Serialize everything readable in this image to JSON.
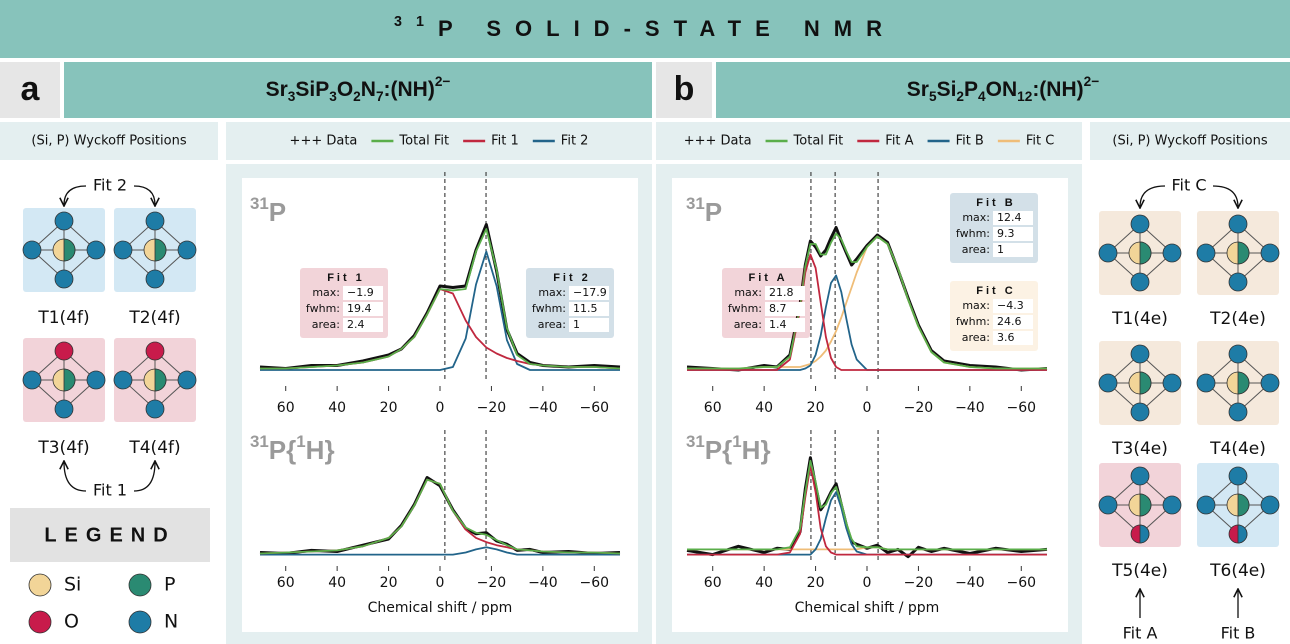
{
  "title": [
    {
      "text": "31",
      "style": "sup"
    },
    {
      "text": "P SOLID-STATE NMR"
    }
  ],
  "legend": {
    "title": "LEGEND",
    "items": [
      {
        "name": "Si",
        "color": "#f2d598"
      },
      {
        "name": "P",
        "color": "#2a8a72"
      },
      {
        "name": "O",
        "color": "#c81b4b"
      },
      {
        "name": "N",
        "color": "#1e7ca6"
      }
    ]
  },
  "wyckoff": [
    {
      "header": "(Si, P) Wyckoff Positions",
      "sites": [
        "T1(4f)",
        "T2(4f)",
        "T3(4f)",
        "T4(4f)"
      ],
      "groups": [
        "Fit 2",
        "Fit 1"
      ]
    },
    {
      "header": "(Si, P) Wyckoff Positions",
      "sites": [
        "T1(4e)",
        "T2(4e)",
        "T3(4e)",
        "T4(4e)",
        "T5(4e)",
        "T6(4e)"
      ],
      "groups": [
        "Fit C",
        "Fit A",
        "Fit B"
      ]
    }
  ],
  "chart_data": [
    {
      "type": "line",
      "panel": "a",
      "formula": [
        {
          "text": "Sr"
        },
        {
          "text": "3",
          "style": "sub"
        },
        {
          "text": "SiP"
        },
        {
          "text": "3",
          "style": "sub"
        },
        {
          "text": "O"
        },
        {
          "text": "2",
          "style": "sub"
        },
        {
          "text": "N"
        },
        {
          "text": "7",
          "style": "sub"
        },
        {
          "text": ":(NH)"
        },
        {
          "text": "2−",
          "style": "sup"
        }
      ],
      "series": [
        {
          "name": "+++ Data",
          "color": "#111111"
        },
        {
          "name": "Total Fit",
          "color": "#5aae4a"
        },
        {
          "name": "Fit 1",
          "color": "#c0283f"
        },
        {
          "name": "Fit 2",
          "color": "#22648a"
        }
      ],
      "x": [
        70,
        60,
        50,
        40,
        30,
        20,
        15,
        10,
        5,
        0,
        -5,
        -10,
        -14,
        -18,
        -22,
        -26,
        -30,
        -35,
        -40,
        -50,
        -60,
        -70
      ],
      "xlim": [
        70,
        -70
      ],
      "xticks": [
        60,
        40,
        20,
        0,
        {
          "value": -20,
          "label": "−20"
        },
        {
          "value": -40,
          "label": "−40"
        },
        {
          "value": -60,
          "label": "−60"
        }
      ],
      "xlabel": "Chemical shift / ppm",
      "ylim": [
        -0.1,
        1.1
      ],
      "fit_fields": [
        "max:",
        "fwhm:",
        "area:"
      ],
      "fits": [
        {
          "values": [
            -1.9,
            19.4,
            2.4
          ],
          "value_labels": [
            "−1.9",
            "19.4",
            "2.4"
          ]
        },
        {
          "values": [
            -17.9,
            11.5,
            1
          ],
          "value_labels": [
            "−17.9",
            "11.5",
            "1"
          ]
        }
      ],
      "spectra": [
        {
          "label": [
            {
              "text": "31",
              "style": "sup"
            },
            {
              "text": "P"
            }
          ],
          "values": [
            [
              0.02,
              0.01,
              0.03,
              0.03,
              0.06,
              0.1,
              0.14,
              0.23,
              0.38,
              0.56,
              0.55,
              0.56,
              0.8,
              0.97,
              0.66,
              0.27,
              0.11,
              0.05,
              0.03,
              0.02,
              0.03,
              0.02
            ],
            [
              0.01,
              0.01,
              0.02,
              0.03,
              0.05,
              0.09,
              0.14,
              0.22,
              0.37,
              0.54,
              0.53,
              0.54,
              0.79,
              0.94,
              0.67,
              0.28,
              0.1,
              0.04,
              0.03,
              0.02,
              0.02,
              0.01
            ],
            [
              0.01,
              0.01,
              0.02,
              0.03,
              0.05,
              0.09,
              0.14,
              0.22,
              0.37,
              0.54,
              0.51,
              0.33,
              0.22,
              0.15,
              0.11,
              0.08,
              0.06,
              0.04,
              0.03,
              0.02,
              0.02,
              0.01
            ],
            [
              0,
              0,
              0,
              0,
              0,
              0,
              0,
              0,
              0,
              0,
              0.02,
              0.21,
              0.57,
              0.79,
              0.56,
              0.2,
              0.04,
              0,
              0,
              0,
              0,
              0
            ]
          ]
        },
        {
          "label": [
            {
              "text": "31",
              "style": "sup"
            },
            {
              "text": "P{"
            },
            {
              "text": "1",
              "style": "sup"
            },
            {
              "text": "H}"
            }
          ],
          "values": [
            [
              0.02,
              0.01,
              0.04,
              0.03,
              0.09,
              0.15,
              0.28,
              0.48,
              0.74,
              0.66,
              0.43,
              0.25,
              0.2,
              0.21,
              0.13,
              0.1,
              0.04,
              0.05,
              0.02,
              0.03,
              0.01,
              0.02
            ],
            [
              0.01,
              0.02,
              0.03,
              0.04,
              0.08,
              0.16,
              0.27,
              0.47,
              0.72,
              0.68,
              0.42,
              0.26,
              0.21,
              0.19,
              0.14,
              0.09,
              0.05,
              0.04,
              0.03,
              0.02,
              0.02,
              0.01
            ],
            [
              0.01,
              0.02,
              0.03,
              0.04,
              0.08,
              0.16,
              0.27,
              0.47,
              0.72,
              0.68,
              0.42,
              0.24,
              0.16,
              0.12,
              0.09,
              0.07,
              0.05,
              0.04,
              0.03,
              0.02,
              0.02,
              0.01
            ],
            [
              0,
              0,
              0,
              0,
              0,
              0,
              0,
              0,
              0,
              0,
              0,
              0.02,
              0.05,
              0.07,
              0.05,
              0.02,
              0,
              0,
              0,
              0,
              0,
              0
            ]
          ]
        }
      ]
    },
    {
      "type": "line",
      "panel": "b",
      "formula": [
        {
          "text": "Sr"
        },
        {
          "text": "5",
          "style": "sub"
        },
        {
          "text": "Si"
        },
        {
          "text": "2",
          "style": "sub"
        },
        {
          "text": "P"
        },
        {
          "text": "4",
          "style": "sub"
        },
        {
          "text": "ON"
        },
        {
          "text": "12",
          "style": "sub"
        },
        {
          "text": ":(NH)"
        },
        {
          "text": "2−",
          "style": "sup"
        }
      ],
      "series": [
        {
          "name": "+++ Data",
          "color": "#111111"
        },
        {
          "name": "Total Fit",
          "color": "#5aae4a"
        },
        {
          "name": "Fit A",
          "color": "#c0283f"
        },
        {
          "name": "Fit B",
          "color": "#22648a"
        },
        {
          "name": "Fit C",
          "color": "#efbd78"
        }
      ],
      "x": [
        70,
        60,
        50,
        40,
        35,
        30,
        26,
        24,
        22,
        20,
        18,
        16,
        14,
        12,
        10,
        8,
        6,
        4,
        0,
        -4,
        -8,
        -12,
        -16,
        -20,
        -25,
        -30,
        -40,
        -50,
        -60,
        -70
      ],
      "xlim": [
        70,
        -70
      ],
      "xticks": [
        60,
        40,
        20,
        0,
        {
          "value": -20,
          "label": "−20"
        },
        {
          "value": -40,
          "label": "−40"
        },
        {
          "value": -60,
          "label": "−60"
        }
      ],
      "xlabel": "Chemical shift / ppm",
      "ylim": [
        -0.1,
        1.1
      ],
      "fit_fields": [
        "max:",
        "fwhm:",
        "area:"
      ],
      "fits": [
        {
          "values": [
            21.8,
            8.7,
            1.4
          ]
        },
        {
          "values": [
            12.4,
            9.3,
            1
          ]
        },
        {
          "values": [
            -4.3,
            24.6,
            3.6
          ],
          "value_labels": [
            "−4.3",
            "24.6",
            "3.6"
          ]
        }
      ],
      "spectra": [
        {
          "label": [
            {
              "text": "31",
              "style": "sup"
            },
            {
              "text": "P"
            }
          ],
          "values": [
            [
              0.02,
              0.01,
              0,
              0.03,
              0.02,
              0.1,
              0.44,
              0.7,
              0.86,
              0.82,
              0.76,
              0.8,
              0.88,
              0.95,
              0.86,
              0.78,
              0.7,
              0.74,
              0.83,
              0.9,
              0.85,
              0.67,
              0.48,
              0.3,
              0.13,
              0.06,
              0.03,
              0.02,
              0,
              0.01
            ],
            [
              0.01,
              0.01,
              0.01,
              0.02,
              0.02,
              0.09,
              0.42,
              0.69,
              0.84,
              0.84,
              0.77,
              0.77,
              0.85,
              0.91,
              0.87,
              0.79,
              0.72,
              0.72,
              0.82,
              0.89,
              0.84,
              0.68,
              0.47,
              0.29,
              0.12,
              0.05,
              0.02,
              0.01,
              0.01,
              0.01
            ],
            [
              0,
              0,
              0,
              0,
              0,
              0.07,
              0.4,
              0.65,
              0.77,
              0.68,
              0.45,
              0.22,
              0.08,
              0.02,
              0,
              0,
              0,
              0,
              0,
              0,
              0,
              0,
              0,
              0,
              0,
              0,
              0,
              0,
              0,
              0
            ],
            [
              0,
              0,
              0,
              0,
              0,
              0,
              0,
              0.01,
              0.03,
              0.1,
              0.23,
              0.42,
              0.58,
              0.63,
              0.52,
              0.34,
              0.17,
              0.07,
              0,
              0,
              0,
              0,
              0,
              0,
              0,
              0,
              0,
              0,
              0,
              0
            ],
            [
              0.01,
              0.01,
              0.01,
              0.02,
              0.02,
              0.02,
              0.02,
              0.03,
              0.04,
              0.06,
              0.09,
              0.13,
              0.19,
              0.26,
              0.35,
              0.45,
              0.55,
              0.65,
              0.82,
              0.89,
              0.84,
              0.68,
              0.47,
              0.29,
              0.12,
              0.05,
              0.02,
              0.01,
              0.01,
              0.01
            ]
          ]
        },
        {
          "label": [
            {
              "text": "31",
              "style": "sup"
            },
            {
              "text": "P{"
            },
            {
              "text": "1",
              "style": "sup"
            },
            {
              "text": "H}"
            }
          ],
          "values": [
            [
              0.04,
              0,
              0.08,
              0.02,
              0.06,
              0.05,
              0.22,
              0.63,
              0.93,
              0.66,
              0.43,
              0.5,
              0.6,
              0.68,
              0.48,
              0.28,
              0.12,
              0.1,
              0.06,
              0.09,
              0.02,
              0.05,
              -0.02,
              0.07,
              0.03,
              0.06,
              0.01,
              0.06,
              0.03,
              0.05
            ],
            [
              0.05,
              0.05,
              0.05,
              0.05,
              0.05,
              0.07,
              0.25,
              0.6,
              0.9,
              0.7,
              0.45,
              0.48,
              0.59,
              0.65,
              0.5,
              0.3,
              0.15,
              0.08,
              0.07,
              0.07,
              0.05,
              0.05,
              0.05,
              0.05,
              0.05,
              0.05,
              0.05,
              0.05,
              0.05,
              0.05
            ],
            [
              0,
              0,
              0,
              0,
              0,
              0.02,
              0.2,
              0.55,
              0.85,
              0.6,
              0.25,
              0.08,
              0.02,
              0,
              0,
              0,
              0,
              0,
              0,
              0,
              0,
              0,
              0,
              0,
              0,
              0,
              0,
              0,
              0,
              0
            ],
            [
              0,
              0,
              0,
              0,
              0,
              0,
              0,
              0,
              0,
              0.05,
              0.15,
              0.35,
              0.52,
              0.6,
              0.45,
              0.25,
              0.1,
              0.03,
              0,
              0,
              0,
              0,
              0,
              0,
              0,
              0,
              0,
              0,
              0,
              0
            ],
            [
              0.05,
              0.05,
              0.05,
              0.05,
              0.05,
              0.05,
              0.05,
              0.05,
              0.05,
              0.05,
              0.05,
              0.05,
              0.05,
              0.05,
              0.05,
              0.05,
              0.05,
              0.05,
              0.07,
              0.07,
              0.05,
              0.05,
              0.05,
              0.05,
              0.05,
              0.05,
              0.05,
              0.05,
              0.05,
              0.05
            ]
          ]
        }
      ]
    }
  ]
}
